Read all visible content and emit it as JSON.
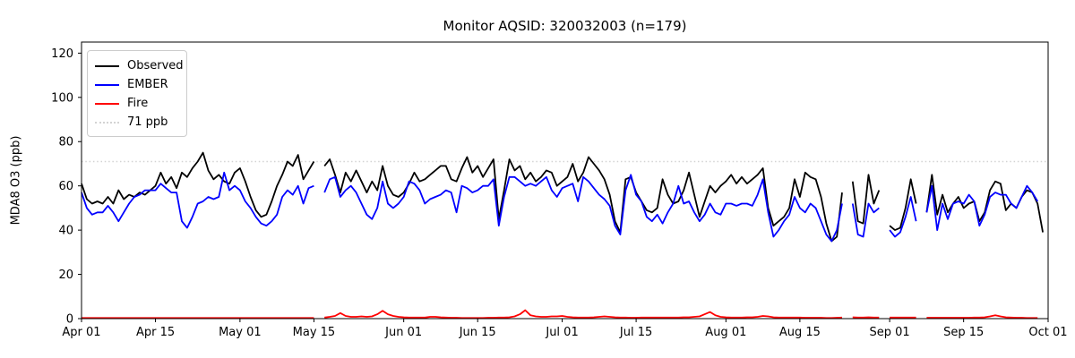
{
  "title": "Monitor AQSID: 320032003 (n=179)",
  "legend": {
    "items": [
      {
        "label": "Observed",
        "color": "#000000",
        "line_style": "solid"
      },
      {
        "label": "EMBER",
        "color": "#0000ff",
        "line_style": "solid"
      },
      {
        "label": "Fire",
        "color": "#ff0000",
        "line_style": "solid"
      },
      {
        "label": "71 ppb",
        "color": "#d3d3d3",
        "line_style": "dotted"
      }
    ]
  },
  "chart_data": {
    "type": "line",
    "title": "Monitor AQSID: 320032003 (n=179)",
    "xlabel": "",
    "ylabel": "MDA8 O3 (ppb)",
    "ylim": [
      0,
      125
    ],
    "y_ticks": [
      0,
      20,
      40,
      60,
      80,
      100,
      120
    ],
    "grid": false,
    "legend_position": "upper left",
    "x_range_days": 183,
    "x_start": "Apr 01",
    "x_end": "Oct 01",
    "x_tick_days": [
      0,
      14,
      30,
      44,
      61,
      75,
      91,
      105,
      122,
      136,
      153,
      167,
      183
    ],
    "x_tick_labels": [
      "Apr 01",
      "Apr 15",
      "May 01",
      "May 15",
      "Jun 01",
      "Jun 15",
      "Jul 01",
      "Jul 15",
      "Aug 01",
      "Aug 15",
      "Sep 01",
      "Sep 15",
      "Oct 01"
    ],
    "missing_days_note": "nulls = missing observations (May 16, Aug 24, Aug 31, Sep 07)",
    "threshold": {
      "value": 71,
      "label": "71 ppb",
      "color": "#d3d3d3"
    },
    "series": [
      {
        "name": "Observed",
        "color": "#000000",
        "values": [
          61,
          54,
          52,
          53,
          52,
          55,
          52,
          58,
          54,
          56,
          55,
          57,
          56,
          58,
          60,
          66,
          61,
          64,
          59,
          66,
          64,
          68,
          71,
          75,
          67,
          63,
          65,
          62,
          61,
          66,
          68,
          62,
          55,
          49,
          46,
          47,
          53,
          60,
          65,
          71,
          69,
          74,
          63,
          67,
          71,
          null,
          69,
          72,
          65,
          57,
          66,
          62,
          67,
          62,
          57,
          62,
          58,
          69,
          60,
          56,
          55,
          57,
          61,
          66,
          62,
          63,
          65,
          67,
          69,
          69,
          63,
          62,
          68,
          73,
          66,
          69,
          64,
          68,
          72,
          45,
          58,
          72,
          67,
          69,
          63,
          66,
          62,
          64,
          67,
          66,
          60,
          62,
          64,
          70,
          62,
          66,
          73,
          70,
          67,
          63,
          56,
          44,
          39,
          63,
          64,
          57,
          53,
          49,
          48,
          50,
          63,
          56,
          52,
          53,
          58,
          66,
          56,
          46,
          53,
          60,
          57,
          60,
          62,
          65,
          61,
          64,
          61,
          63,
          65,
          68,
          50,
          42,
          44,
          46,
          50,
          63,
          55,
          66,
          64,
          63,
          55,
          43,
          35,
          37,
          57,
          null,
          62,
          44,
          43,
          65,
          52,
          58,
          null,
          42,
          40,
          41,
          50,
          63,
          52,
          null,
          48,
          65,
          47,
          56,
          48,
          52,
          55,
          50,
          52,
          53,
          44,
          48,
          58,
          62,
          61,
          49,
          52,
          50,
          55,
          58,
          57,
          52,
          39
        ]
      },
      {
        "name": "EMBER",
        "color": "#0000ff",
        "values": [
          57,
          50,
          47,
          48,
          48,
          51,
          48,
          44,
          48,
          52,
          55,
          56,
          58,
          58,
          58,
          61,
          59,
          57,
          57,
          44,
          41,
          46,
          52,
          53,
          55,
          54,
          55,
          66,
          58,
          60,
          58,
          53,
          50,
          46,
          43,
          42,
          44,
          47,
          55,
          58,
          56,
          60,
          52,
          59,
          60,
          null,
          57,
          63,
          64,
          55,
          58,
          60,
          57,
          52,
          47,
          45,
          50,
          62,
          52,
          50,
          52,
          55,
          62,
          61,
          58,
          52,
          54,
          55,
          56,
          58,
          57,
          48,
          60,
          59,
          57,
          58,
          60,
          60,
          63,
          42,
          55,
          64,
          64,
          62,
          60,
          61,
          60,
          62,
          64,
          58,
          55,
          59,
          60,
          61,
          53,
          64,
          62,
          59,
          56,
          54,
          51,
          42,
          38,
          58,
          65,
          56,
          53,
          46,
          44,
          47,
          43,
          48,
          52,
          60,
          52,
          53,
          48,
          44,
          47,
          52,
          48,
          47,
          52,
          52,
          51,
          52,
          52,
          51,
          56,
          63,
          48,
          37,
          40,
          44,
          47,
          55,
          50,
          48,
          52,
          50,
          44,
          38,
          35,
          40,
          52,
          null,
          52,
          38,
          37,
          52,
          48,
          50,
          null,
          40,
          37,
          39,
          46,
          55,
          44,
          null,
          48,
          60,
          40,
          52,
          45,
          52,
          53,
          52,
          56,
          53,
          42,
          47,
          55,
          57,
          56,
          56,
          52,
          50,
          55,
          60,
          57,
          53,
          null
        ]
      },
      {
        "name": "Fire",
        "color": "#ff0000",
        "values": [
          0.3,
          0.3,
          0.3,
          0.3,
          0.3,
          0.3,
          0.3,
          0.3,
          0.3,
          0.3,
          0.3,
          0.3,
          0.3,
          0.3,
          0.3,
          0.3,
          0.3,
          0.3,
          0.3,
          0.3,
          0.3,
          0.3,
          0.3,
          0.3,
          0.3,
          0.3,
          0.3,
          0.3,
          0.3,
          0.3,
          0.3,
          0.3,
          0.3,
          0.3,
          0.3,
          0.3,
          0.3,
          0.3,
          0.3,
          0.3,
          0.3,
          0.3,
          0.3,
          0.3,
          0.3,
          null,
          0.5,
          0.8,
          1.2,
          2.5,
          1.2,
          0.8,
          0.8,
          1.0,
          0.8,
          1.0,
          2.0,
          3.5,
          2.0,
          1.2,
          0.8,
          0.6,
          0.5,
          0.5,
          0.5,
          0.5,
          0.8,
          0.8,
          0.6,
          0.5,
          0.4,
          0.4,
          0.3,
          0.3,
          0.3,
          0.3,
          0.3,
          0.4,
          0.4,
          0.5,
          0.5,
          0.6,
          1.0,
          2.0,
          3.8,
          1.5,
          1.0,
          0.8,
          0.8,
          1.0,
          1.0,
          1.2,
          0.8,
          0.6,
          0.5,
          0.5,
          0.5,
          0.6,
          0.8,
          1.0,
          0.8,
          0.6,
          0.5,
          0.5,
          0.4,
          0.4,
          0.5,
          0.5,
          0.5,
          0.5,
          0.5,
          0.5,
          0.5,
          0.5,
          0.6,
          0.6,
          0.8,
          1.0,
          2.0,
          3.0,
          1.5,
          0.8,
          0.6,
          0.5,
          0.5,
          0.5,
          0.6,
          0.6,
          0.8,
          1.2,
          1.0,
          0.6,
          0.5,
          0.5,
          0.5,
          0.5,
          0.5,
          0.4,
          0.4,
          0.4,
          0.4,
          0.3,
          0.3,
          0.4,
          0.5,
          null,
          0.6,
          0.5,
          0.5,
          0.6,
          0.5,
          0.5,
          null,
          0.5,
          0.5,
          0.5,
          0.5,
          0.5,
          0.5,
          null,
          0.4,
          0.4,
          0.4,
          0.4,
          0.4,
          0.4,
          0.4,
          0.4,
          0.4,
          0.5,
          0.5,
          0.6,
          1.0,
          1.5,
          1.0,
          0.6,
          0.5,
          0.4,
          0.4,
          0.3,
          0.3,
          0.3,
          null
        ]
      }
    ]
  }
}
